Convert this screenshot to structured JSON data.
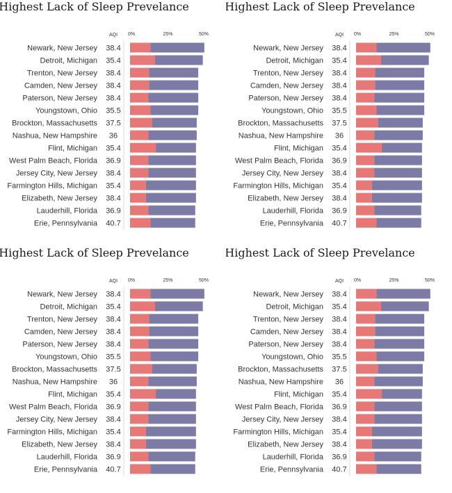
{
  "chart_data": [
    {
      "type": "bar",
      "title": "Highest Lack of Sleep Prevelance",
      "aqi_header": "AQI",
      "ticks": [
        "0%",
        "25%",
        "50%"
      ],
      "xlim": [
        0,
        50
      ],
      "categories": [
        "Newark, New Jersey",
        "Detroit, Michigan",
        "Trenton, New Jersey",
        "Camden, New Jersey",
        "Paterson, New Jersey",
        "Youngstown, Ohio",
        "Brockton, Massachusetts",
        "Nashua, New Hampshire",
        "Flint, Michigan",
        "West Palm Beach, Florida",
        "Jersey City, New Jersey",
        "Farmington Hills, Michigan",
        "Elizabeth, New Jersey",
        "Lauderhill, Florida",
        "Erie, Pennsylvania"
      ],
      "aqi": [
        "38.4",
        "35.4",
        "38.4",
        "38.4",
        "38.4",
        "35.5",
        "37.5",
        "36",
        "35.4",
        "36.9",
        "38.4",
        "35.4",
        "38.4",
        "36.9",
        "40.7"
      ],
      "series": [
        {
          "values": [
            13.5,
            16.5,
            12.5,
            12.5,
            12,
            13.5,
            14.5,
            12,
            17,
            12,
            12,
            10.5,
            10.5,
            12,
            13.5
          ]
        },
        {
          "values": [
            35.5,
            31.5,
            32.5,
            32.5,
            33,
            31.5,
            29.5,
            32,
            26.5,
            31.5,
            31.5,
            33,
            33,
            31,
            29.5
          ]
        }
      ],
      "colors": [
        "#e67878",
        "#7b7ba6"
      ],
      "stacked": true,
      "grid": false
    },
    {
      "type": "bar",
      "title": "Highest Lack of Sleep Prevelance",
      "aqi_header": "AQI",
      "ticks": [
        "0%",
        "25%",
        "50%"
      ],
      "xlim": [
        0,
        50
      ],
      "categories": [
        "Newark, New Jersey",
        "Detroit, Michigan",
        "Trenton, New Jersey",
        "Camden, New Jersey",
        "Paterson, New Jersey",
        "Youngstown, Ohio",
        "Brockton, Massachusetts",
        "Nashua, New Hampshire",
        "Flint, Michigan",
        "West Palm Beach, Florida",
        "Jersey City, New Jersey",
        "Farmington Hills, Michigan",
        "Elizabeth, New Jersey",
        "Lauderhill, Florida",
        "Erie, Pennsylvania"
      ],
      "aqi": [
        "38.4",
        "35.4",
        "38.4",
        "38.4",
        "38.4",
        "35.5",
        "37.5",
        "36",
        "35.4",
        "36.9",
        "38.4",
        "35.4",
        "38.4",
        "36.9",
        "40.7"
      ],
      "series": [
        {
          "values": [
            13.5,
            16.5,
            12.5,
            12.5,
            12,
            13.5,
            14.5,
            12,
            17,
            12,
            12,
            10.5,
            10.5,
            12,
            13.5
          ]
        },
        {
          "values": [
            35.5,
            31.5,
            32.5,
            32.5,
            33,
            31.5,
            29.5,
            32,
            26.5,
            31.5,
            31.5,
            33,
            33,
            31,
            29.5
          ]
        }
      ],
      "colors": [
        "#e67878",
        "#7b7ba6"
      ],
      "stacked": true,
      "grid": false
    },
    {
      "type": "bar",
      "title": "Highest Lack of Sleep Prevelance",
      "aqi_header": "AQI",
      "ticks": [
        "0%",
        "25%",
        "50%"
      ],
      "xlim": [
        0,
        50
      ],
      "categories": [
        "Newark, New Jersey",
        "Detroit, Michigan",
        "Trenton, New Jersey",
        "Camden, New Jersey",
        "Paterson, New Jersey",
        "Youngstown, Ohio",
        "Brockton, Massachusetts",
        "Nashua, New Hampshire",
        "Flint, Michigan",
        "West Palm Beach, Florida",
        "Jersey City, New Jersey",
        "Farmington Hills, Michigan",
        "Elizabeth, New Jersey",
        "Lauderhill, Florida",
        "Erie, Pennsylvania"
      ],
      "aqi": [
        "38.4",
        "35.4",
        "38.4",
        "38.4",
        "38.4",
        "35.5",
        "37.5",
        "36",
        "35.4",
        "36.9",
        "38.4",
        "35.4",
        "38.4",
        "36.9",
        "40.7"
      ],
      "series": [
        {
          "values": [
            13.5,
            16.5,
            12.5,
            12.5,
            12,
            13.5,
            14.5,
            12,
            17,
            12,
            12,
            10.5,
            10.5,
            12,
            13.5
          ]
        },
        {
          "values": [
            35.5,
            31.5,
            32.5,
            32.5,
            33,
            31.5,
            29.5,
            32,
            26.5,
            31.5,
            31.5,
            33,
            33,
            31,
            29.5
          ]
        }
      ],
      "colors": [
        "#e67878",
        "#7b7ba6"
      ],
      "stacked": true,
      "grid": false
    },
    {
      "type": "bar",
      "title": "Highest Lack of Sleep Prevelance",
      "aqi_header": "AQI",
      "ticks": [
        "0%",
        "25%",
        "50%"
      ],
      "xlim": [
        0,
        50
      ],
      "categories": [
        "Newark, New Jersey",
        "Detroit, Michigan",
        "Trenton, New Jersey",
        "Camden, New Jersey",
        "Paterson, New Jersey",
        "Youngstown, Ohio",
        "Brockton, Massachusetts",
        "Nashua, New Hampshire",
        "Flint, Michigan",
        "West Palm Beach, Florida",
        "Jersey City, New Jersey",
        "Farmington Hills, Michigan",
        "Elizabeth, New Jersey",
        "Lauderhill, Florida",
        "Erie, Pennsylvania"
      ],
      "aqi": [
        "38.4",
        "35.4",
        "38.4",
        "38.4",
        "38.4",
        "35.5",
        "37.5",
        "36",
        "35.4",
        "36.9",
        "38.4",
        "35.4",
        "38.4",
        "36.9",
        "40.7"
      ],
      "series": [
        {
          "values": [
            13.5,
            16.5,
            12.5,
            12.5,
            12,
            13.5,
            14.5,
            12,
            17,
            12,
            12,
            10.5,
            10.5,
            12,
            13.5
          ]
        },
        {
          "values": [
            35.5,
            31.5,
            32.5,
            32.5,
            33,
            31.5,
            29.5,
            32,
            26.5,
            31.5,
            31.5,
            33,
            33,
            31,
            29.5
          ]
        }
      ],
      "colors": [
        "#e67878",
        "#7b7ba6"
      ],
      "stacked": true,
      "grid": false
    }
  ]
}
